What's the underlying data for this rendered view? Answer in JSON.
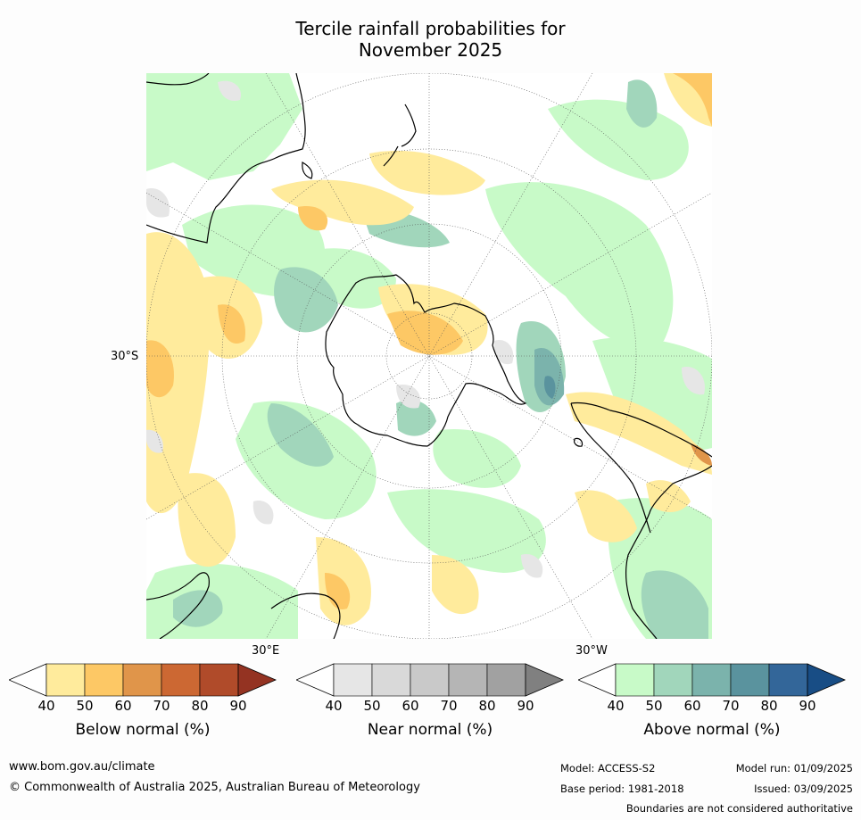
{
  "title_line1": "Tercile rainfall probabilities for",
  "title_line2": "November 2025",
  "axis_labels": {
    "lat_30s": "30°S",
    "lon_30e": "30°E",
    "lon_30w": "30°W"
  },
  "colorbars": [
    {
      "title": "Below normal (%)",
      "ticks": [
        "40",
        "50",
        "60",
        "70",
        "80",
        "90"
      ],
      "colors": [
        "#ffffff",
        "#ffeb9c",
        "#fdc865",
        "#e0954a",
        "#cc6833",
        "#b04b2a",
        "#943322"
      ]
    },
    {
      "title": "Near normal (%)",
      "ticks": [
        "40",
        "50",
        "60",
        "70",
        "80",
        "90"
      ],
      "colors": [
        "#ffffff",
        "#e6e6e6",
        "#d9d9d9",
        "#c9c9c9",
        "#b5b5b5",
        "#a1a1a1",
        "#808080"
      ]
    },
    {
      "title": "Above normal (%)",
      "ticks": [
        "40",
        "50",
        "60",
        "70",
        "80",
        "90"
      ],
      "colors": [
        "#ffffff",
        "#c8fac8",
        "#a1d6bb",
        "#7bb3ac",
        "#5a939e",
        "#336699",
        "#184d85"
      ]
    }
  ],
  "footer": {
    "website": "www.bom.gov.au/climate",
    "copyright": "© Commonwealth of Australia 2025, Australian Bureau of Meteorology",
    "model": "Model: ACCESS-S2",
    "model_run": "Model run: 01/09/2025",
    "base_period": "Base period: 1981-2018",
    "issued": "Issued: 03/09/2025",
    "disclaimer": "Boundaries are not considered authoritative"
  },
  "map_colors": {
    "ocean": "#ffffff",
    "above_light": "#c8fac8",
    "above_mid": "#a1d6bb",
    "above_dark": "#7bb3ac",
    "above_darker": "#5a939e",
    "below_light": "#ffeb9c",
    "below_mid": "#fdc865",
    "below_dark": "#e0954a",
    "near_light": "#e6e6e6"
  }
}
